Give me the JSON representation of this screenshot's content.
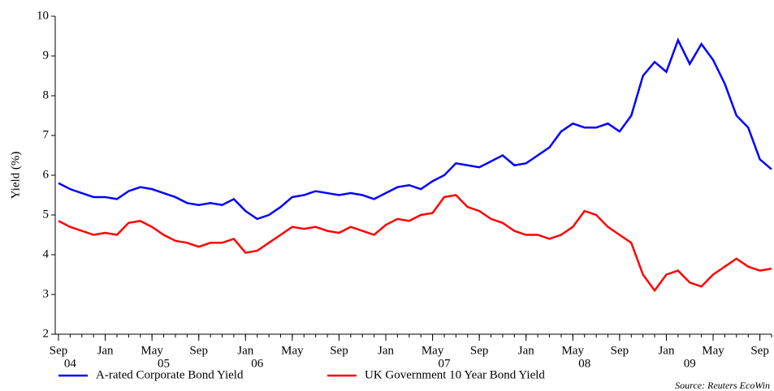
{
  "chart_data": {
    "type": "line",
    "y_label": "Yield (%)",
    "source": "Source: Reuters EcoWin",
    "x": [
      "2004-09",
      "2004-10",
      "2004-11",
      "2004-12",
      "2005-01",
      "2005-02",
      "2005-03",
      "2005-04",
      "2005-05",
      "2005-06",
      "2005-07",
      "2005-08",
      "2005-09",
      "2005-10",
      "2005-11",
      "2005-12",
      "2006-01",
      "2006-02",
      "2006-03",
      "2006-04",
      "2006-05",
      "2006-06",
      "2006-07",
      "2006-08",
      "2006-09",
      "2006-10",
      "2006-11",
      "2006-12",
      "2007-01",
      "2007-02",
      "2007-03",
      "2007-04",
      "2007-05",
      "2007-06",
      "2007-07",
      "2007-08",
      "2007-09",
      "2007-10",
      "2007-11",
      "2007-12",
      "2008-01",
      "2008-02",
      "2008-03",
      "2008-04",
      "2008-05",
      "2008-06",
      "2008-07",
      "2008-08",
      "2008-09",
      "2008-10",
      "2008-11",
      "2008-12",
      "2009-01",
      "2009-02",
      "2009-03",
      "2009-04",
      "2009-05",
      "2009-06",
      "2009-07",
      "2009-08",
      "2009-09",
      "2009-10"
    ],
    "series": [
      {
        "name": "A-rated Corporate Bond Yield",
        "color": "#0000ff",
        "values": [
          5.8,
          5.65,
          5.55,
          5.45,
          5.45,
          5.4,
          5.6,
          5.7,
          5.65,
          5.55,
          5.45,
          5.3,
          5.25,
          5.3,
          5.25,
          5.4,
          5.1,
          4.9,
          5.0,
          5.2,
          5.45,
          5.5,
          5.6,
          5.55,
          5.5,
          5.55,
          5.5,
          5.4,
          5.55,
          5.7,
          5.75,
          5.65,
          5.85,
          6.0,
          6.3,
          6.25,
          6.2,
          6.35,
          6.5,
          6.25,
          6.3,
          6.5,
          6.7,
          7.1,
          7.3,
          7.2,
          7.2,
          7.3,
          7.1,
          7.5,
          8.5,
          8.85,
          8.6,
          9.4,
          8.8,
          9.3,
          8.9,
          8.3,
          7.5,
          7.2,
          6.4,
          6.15
        ]
      },
      {
        "name": "UK Government 10 Year Bond Yield",
        "color": "#ff0000",
        "values": [
          4.85,
          4.7,
          4.6,
          4.5,
          4.55,
          4.5,
          4.8,
          4.85,
          4.7,
          4.5,
          4.35,
          4.3,
          4.2,
          4.3,
          4.3,
          4.4,
          4.05,
          4.1,
          4.3,
          4.5,
          4.7,
          4.65,
          4.7,
          4.6,
          4.55,
          4.7,
          4.6,
          4.5,
          4.75,
          4.9,
          4.85,
          5.0,
          5.05,
          5.45,
          5.5,
          5.2,
          5.1,
          4.9,
          4.8,
          4.6,
          4.5,
          4.5,
          4.4,
          4.5,
          4.7,
          5.1,
          5.0,
          4.7,
          4.5,
          4.3,
          3.5,
          3.1,
          3.5,
          3.6,
          3.3,
          3.2,
          3.5,
          3.7,
          3.9,
          3.7,
          3.6,
          3.65
        ]
      }
    ],
    "xlim": [
      "2004-09",
      "2009-10"
    ],
    "xticks": [
      {
        "value": "2004-09",
        "label": "Sep"
      },
      {
        "value": "2005-01",
        "label": "Jan"
      },
      {
        "value": "2005-05",
        "label": "May"
      },
      {
        "value": "2005-09",
        "label": "Sep"
      },
      {
        "value": "2006-01",
        "label": "Jan"
      },
      {
        "value": "2006-05",
        "label": "May"
      },
      {
        "value": "2006-09",
        "label": "Sep"
      },
      {
        "value": "2007-01",
        "label": "Jan"
      },
      {
        "value": "2007-05",
        "label": "May"
      },
      {
        "value": "2007-09",
        "label": "Sep"
      },
      {
        "value": "2008-01",
        "label": "Jan"
      },
      {
        "value": "2008-05",
        "label": "May"
      },
      {
        "value": "2008-09",
        "label": "Sep"
      },
      {
        "value": "2009-01",
        "label": "Jan"
      },
      {
        "value": "2009-05",
        "label": "May"
      },
      {
        "value": "2009-09",
        "label": "Sep"
      }
    ],
    "year_labels": [
      {
        "value": "2004-10",
        "label": "04"
      },
      {
        "value": "2005-06",
        "label": "05"
      },
      {
        "value": "2006-02",
        "label": "06"
      },
      {
        "value": "2007-06",
        "label": "07"
      },
      {
        "value": "2008-06",
        "label": "08"
      },
      {
        "value": "2009-03",
        "label": "09"
      }
    ],
    "ylim": [
      2,
      10
    ],
    "yticks": [
      2,
      3,
      4,
      5,
      6,
      7,
      8,
      9,
      10
    ],
    "legend": "bottom"
  }
}
